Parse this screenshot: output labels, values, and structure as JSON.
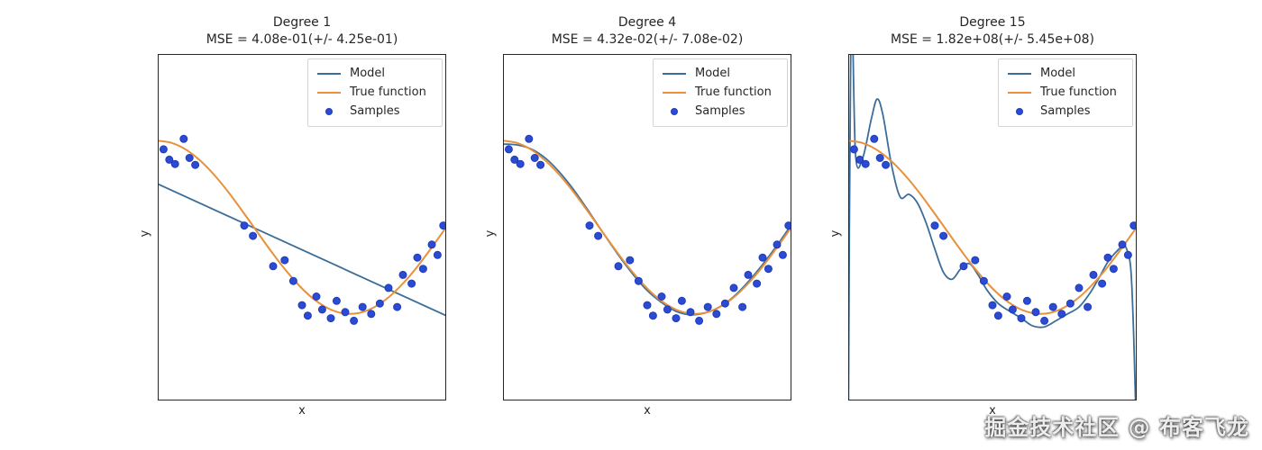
{
  "watermark": {
    "text": "掘金技术社区 @ 布客飞龙"
  },
  "colors": {
    "model_line": "#3c6e99",
    "true_function_line": "#e8913c",
    "samples_fill": "#2b4bd0",
    "samples_edge": "#1f3bbf",
    "axes_border": "#262626",
    "legend_border": "#d5d5d5"
  },
  "chart_data": {
    "type": "line",
    "description": "Polynomial regression fits of degree 1, 4 and 15 to noisy cosine samples (underfitting vs overfitting)",
    "xlabel": "x",
    "ylabel": "y",
    "xlim": [
      0,
      1
    ],
    "ylim": [
      -2,
      2
    ],
    "xticks": [],
    "yticks": [],
    "grid": false,
    "legend_position": "upper right",
    "legend": [
      {
        "label": "Model",
        "swatch": "line",
        "color": "#3c6e99"
      },
      {
        "label": "True function",
        "swatch": "line",
        "color": "#e8913c"
      },
      {
        "label": "Samples",
        "swatch": "dot",
        "color": "#2b4bd0"
      }
    ],
    "x_grid": [
      0,
      0.05,
      0.1,
      0.15,
      0.2,
      0.25,
      0.3,
      0.35,
      0.4,
      0.45,
      0.5,
      0.55,
      0.6,
      0.65,
      0.7,
      0.75,
      0.8,
      0.85,
      0.9,
      0.95,
      1.0
    ],
    "true_function": {
      "label": "True function",
      "formula": "y = cos(1.5*pi*x)",
      "y": [
        1.0,
        0.972,
        0.891,
        0.76,
        0.588,
        0.383,
        0.156,
        -0.078,
        -0.309,
        -0.522,
        -0.707,
        -0.853,
        -0.951,
        -0.997,
        -0.988,
        -0.924,
        -0.809,
        -0.649,
        -0.454,
        -0.233,
        0.0
      ]
    },
    "samples": {
      "label": "Samples",
      "x": [
        0.02,
        0.04,
        0.06,
        0.09,
        0.11,
        0.13,
        0.3,
        0.33,
        0.4,
        0.44,
        0.47,
        0.5,
        0.52,
        0.55,
        0.57,
        0.6,
        0.62,
        0.65,
        0.68,
        0.71,
        0.74,
        0.77,
        0.8,
        0.83,
        0.85,
        0.88,
        0.9,
        0.92,
        0.95,
        0.97,
        0.99
      ],
      "y": [
        0.9,
        0.78,
        0.73,
        1.02,
        0.8,
        0.72,
        0.02,
        -0.1,
        -0.45,
        -0.38,
        -0.62,
        -0.9,
        -1.02,
        -0.8,
        -0.95,
        -1.05,
        -0.85,
        -0.98,
        -1.08,
        -0.92,
        -1.0,
        -0.88,
        -0.7,
        -0.92,
        -0.55,
        -0.65,
        -0.35,
        -0.48,
        -0.2,
        -0.32,
        0.02
      ]
    },
    "subplots": [
      {
        "title": "Degree 1",
        "mse_line": "MSE = 4.08e-01(+/- 4.25e-01)",
        "model": {
          "label": "Model",
          "x": [
            0,
            1
          ],
          "y": [
            0.5,
            -1.02
          ]
        }
      },
      {
        "title": "Degree 4",
        "mse_line": "MSE = 4.32e-02(+/- 7.08e-02)",
        "model": {
          "label": "Model",
          "x": [
            0,
            0.05,
            0.1,
            0.15,
            0.2,
            0.25,
            0.3,
            0.35,
            0.4,
            0.45,
            0.5,
            0.55,
            0.6,
            0.65,
            0.7,
            0.75,
            0.8,
            0.85,
            0.9,
            0.95,
            1.0
          ],
          "y": [
            0.96,
            0.95,
            0.9,
            0.79,
            0.62,
            0.41,
            0.17,
            -0.08,
            -0.32,
            -0.54,
            -0.73,
            -0.87,
            -0.97,
            -1.01,
            -0.99,
            -0.92,
            -0.8,
            -0.63,
            -0.43,
            -0.21,
            0.03
          ]
        }
      },
      {
        "title": "Degree 15",
        "mse_line": "MSE = 1.82e+08(+/- 5.45e+08)",
        "model": {
          "label": "Model",
          "x": [
            0.0,
            0.01,
            0.025,
            0.05,
            0.08,
            0.1,
            0.12,
            0.15,
            0.18,
            0.21,
            0.24,
            0.27,
            0.3,
            0.33,
            0.36,
            0.39,
            0.42,
            0.45,
            0.48,
            0.52,
            0.56,
            0.6,
            0.64,
            0.68,
            0.72,
            0.76,
            0.8,
            0.84,
            0.87,
            0.9,
            0.93,
            0.95,
            0.965,
            0.98,
            0.99,
            1.0
          ],
          "y": [
            -2.6,
            2.6,
            0.85,
            0.8,
            1.25,
            1.48,
            1.3,
            0.72,
            0.35,
            0.38,
            0.28,
            0.05,
            -0.25,
            -0.52,
            -0.6,
            -0.48,
            -0.42,
            -0.55,
            -0.72,
            -0.88,
            -0.97,
            -1.05,
            -1.14,
            -1.15,
            -1.08,
            -1.0,
            -0.92,
            -0.75,
            -0.58,
            -0.4,
            -0.28,
            -0.22,
            -0.25,
            -0.5,
            -1.3,
            -2.6
          ]
        }
      }
    ]
  },
  "layout": {
    "subplot_lefts": [
      175,
      558,
      941
    ]
  }
}
